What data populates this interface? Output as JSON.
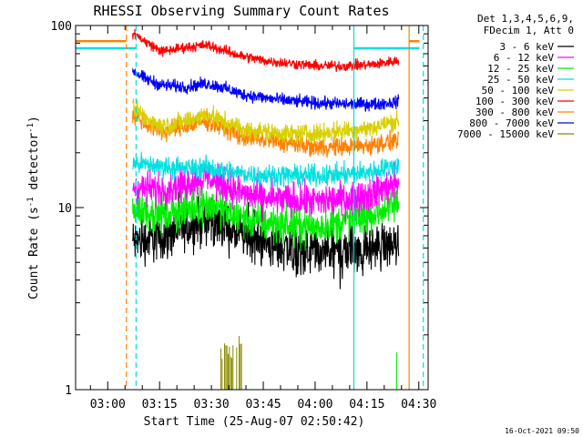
{
  "chart_data": {
    "type": "line",
    "title": "RHESSI Observing Summary Count Rates",
    "xlabel": "Start Time (25-Aug-07 02:50:42)",
    "ylabel": "Count Rate (s",
    "ylabel_sup": "-1",
    "ylabel_tail": " detector",
    "ylabel_end": ")",
    "x_unit": "minutes since 02:50:42",
    "xlim": [
      0,
      102
    ],
    "ylim": [
      1,
      100
    ],
    "y_scale": "log",
    "grid": false,
    "legend_position": "top-right, outside plot",
    "legend_header": [
      "Det 1,3,4,5,6,9,",
      "FDecim 1, Att 0"
    ],
    "x_ticks": [
      {
        "label": "03:00",
        "v": 9.3
      },
      {
        "label": "03:15",
        "v": 24.3
      },
      {
        "label": "03:30",
        "v": 39.3
      },
      {
        "label": "03:45",
        "v": 54.3
      },
      {
        "label": "04:00",
        "v": 69.3
      },
      {
        "label": "04:15",
        "v": 84.3
      },
      {
        "label": "04:30",
        "v": 99.3
      }
    ],
    "y_ticks": [
      {
        "label": "1",
        "v": 1
      },
      {
        "label": "10",
        "v": 10
      },
      {
        "label": "100",
        "v": 100
      }
    ],
    "data_window": [
      16.5,
      93.5
    ],
    "series": [
      {
        "name": "3 - 6 keV",
        "color": "#000000",
        "points": [
          [
            17,
            6.5
          ],
          [
            25,
            6.8
          ],
          [
            32,
            7.8
          ],
          [
            38,
            8.6
          ],
          [
            42,
            8.0
          ],
          [
            48,
            7.0
          ],
          [
            55,
            6.3
          ],
          [
            62,
            6.0
          ],
          [
            70,
            5.6
          ],
          [
            78,
            5.8
          ],
          [
            86,
            6.0
          ],
          [
            93,
            6.3
          ]
        ],
        "noise": 0.11
      },
      {
        "name": "6 - 12 keV",
        "color": "#ff00ff",
        "points": [
          [
            17,
            13
          ],
          [
            25,
            12.6
          ],
          [
            32,
            13.6
          ],
          [
            38,
            14.8
          ],
          [
            42,
            13.6
          ],
          [
            48,
            12.0
          ],
          [
            55,
            11.2
          ],
          [
            62,
            11.0
          ],
          [
            70,
            10.8
          ],
          [
            78,
            11.2
          ],
          [
            86,
            12.0
          ],
          [
            93,
            13.6
          ]
        ],
        "noise": 0.08
      },
      {
        "name": "12 - 25 keV",
        "color": "#00ee00",
        "points": [
          [
            17,
            9.8
          ],
          [
            25,
            9.2
          ],
          [
            32,
            9.8
          ],
          [
            38,
            10.6
          ],
          [
            42,
            9.6
          ],
          [
            48,
            8.8
          ],
          [
            55,
            8.2
          ],
          [
            62,
            8.0
          ],
          [
            70,
            7.8
          ],
          [
            78,
            8.4
          ],
          [
            86,
            9.2
          ],
          [
            93,
            10.5
          ]
        ],
        "noise": 0.09
      },
      {
        "name": "25 - 50 keV",
        "color": "#00e0e0",
        "points": [
          [
            17,
            17.5
          ],
          [
            25,
            16.8
          ],
          [
            32,
            16.4
          ],
          [
            38,
            16.6
          ],
          [
            42,
            16.0
          ],
          [
            48,
            15.4
          ],
          [
            55,
            15.0
          ],
          [
            62,
            15.0
          ],
          [
            70,
            15.0
          ],
          [
            78,
            15.2
          ],
          [
            86,
            15.8
          ],
          [
            93,
            17.0
          ]
        ],
        "noise": 0.05
      },
      {
        "name": "50 - 100 keV",
        "color": "#d8d000",
        "points": [
          [
            17,
            35
          ],
          [
            20,
            31
          ],
          [
            25,
            28
          ],
          [
            32,
            30
          ],
          [
            38,
            32.5
          ],
          [
            42,
            30
          ],
          [
            48,
            27
          ],
          [
            55,
            26
          ],
          [
            62,
            25.5
          ],
          [
            70,
            25.5
          ],
          [
            78,
            26.5
          ],
          [
            86,
            27.5
          ],
          [
            93,
            30
          ]
        ],
        "noise": 0.045
      },
      {
        "name": "100 - 300 keV",
        "color": "#ff0000",
        "points": [
          [
            17,
            90
          ],
          [
            20,
            82
          ],
          [
            25,
            72
          ],
          [
            32,
            76
          ],
          [
            38,
            78
          ],
          [
            42,
            74
          ],
          [
            48,
            68
          ],
          [
            55,
            64
          ],
          [
            62,
            62
          ],
          [
            70,
            60
          ],
          [
            78,
            60
          ],
          [
            86,
            61
          ],
          [
            93,
            64
          ]
        ],
        "noise": 0.025
      },
      {
        "name": "300 - 800 keV",
        "color": "#ff8000",
        "points": [
          [
            17,
            32
          ],
          [
            20,
            29
          ],
          [
            25,
            26
          ],
          [
            32,
            28
          ],
          [
            38,
            30
          ],
          [
            42,
            28
          ],
          [
            48,
            24.5
          ],
          [
            55,
            23.5
          ],
          [
            62,
            22.5
          ],
          [
            70,
            21.5
          ],
          [
            78,
            21.5
          ],
          [
            86,
            22
          ],
          [
            93,
            23.5
          ]
        ],
        "noise": 0.045
      },
      {
        "name": "800 - 7000 keV",
        "color": "#0000ff",
        "points": [
          [
            17,
            56
          ],
          [
            20,
            51
          ],
          [
            25,
            47
          ],
          [
            32,
            46
          ],
          [
            38,
            48
          ],
          [
            42,
            46
          ],
          [
            48,
            42
          ],
          [
            55,
            40
          ],
          [
            62,
            38.5
          ],
          [
            70,
            37.5
          ],
          [
            78,
            37
          ],
          [
            86,
            37
          ],
          [
            93,
            38
          ]
        ],
        "noise": 0.03
      },
      {
        "name": "7000 - 15000 keV",
        "color": "#888800",
        "points": [],
        "noise": 0
      }
    ],
    "attenuator_state_lines": [
      {
        "color": "#00e0e0",
        "y": 75,
        "x_start": 0,
        "x_end": 17.5
      },
      {
        "color": "#ff8000",
        "y": 82,
        "x_start": 0,
        "x_end": 14.7
      },
      {
        "color": "#00e0e0",
        "y": 75,
        "x_start": 80.5,
        "x_end": 99.5
      },
      {
        "color": "#ff8000",
        "y": 82,
        "x_start": 96.5,
        "x_end": 99.5
      }
    ],
    "vertical_markers": [
      {
        "color": "#ff8000",
        "x": 14.7,
        "style": "dashed"
      },
      {
        "color": "#00e0e0",
        "x": 17.5,
        "style": "dashed"
      },
      {
        "color": "#00e0e0",
        "x": 80.5,
        "style": "solid"
      },
      {
        "color": "#ff8000",
        "x": 96.5,
        "style": "solid"
      },
      {
        "color": "#00e0e0",
        "x": 100.6,
        "style": "dashed"
      }
    ],
    "high_energy_spikes": {
      "color": "#888800",
      "x_start": 41,
      "x_end": 49,
      "y_max": 2.0
    },
    "footer_timestamp": "16-Oct-2021 09:50"
  }
}
